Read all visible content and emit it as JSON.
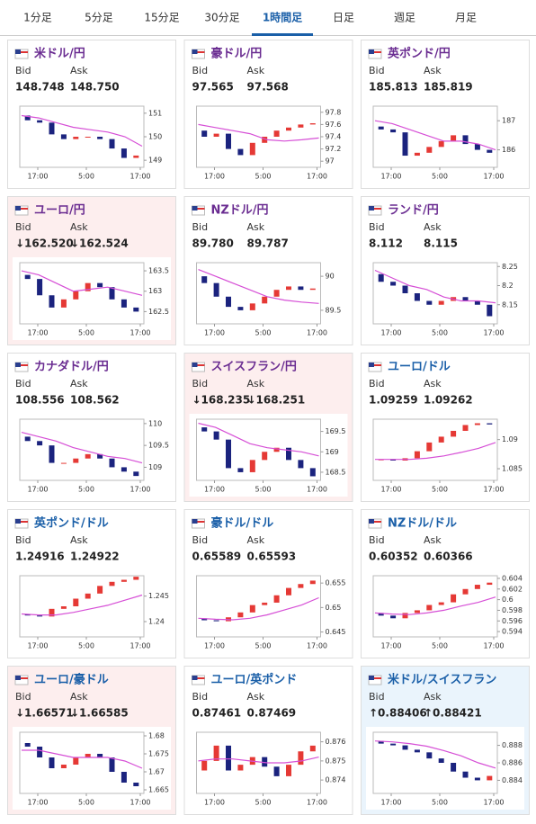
{
  "tabs": [
    "1分足",
    "5分足",
    "15分足",
    "30分足",
    "1時間足",
    "日足",
    "週足",
    "月足"
  ],
  "active_tab": 4,
  "labels": {
    "bid": "Bid",
    "ask": "Ask"
  },
  "time_labels": [
    "17:00",
    "5:00",
    "17:00"
  ],
  "cards": [
    {
      "name": "米ドル/円",
      "name_color": "#6a2c91",
      "bid": "148.748",
      "ask": "148.750",
      "ylim": [
        148.7,
        151.3
      ],
      "yticks": [
        149,
        150,
        151
      ],
      "open": [
        150.9,
        150.7,
        150.6,
        150.1,
        149.9,
        150.0,
        150.0,
        149.9,
        149.5,
        149.1
      ],
      "close": [
        150.7,
        150.6,
        150.1,
        149.9,
        150.0,
        150.0,
        149.9,
        149.5,
        149.1,
        149.2
      ],
      "ma": [
        150.9,
        150.8,
        150.6,
        150.4,
        150.3,
        150.2,
        150.0,
        149.6
      ]
    },
    {
      "name": "豪ドル/円",
      "name_color": "#6a2c91",
      "bid": "97.565",
      "ask": "97.568",
      "ylim": [
        96.9,
        97.9
      ],
      "yticks": [
        97,
        97.2,
        97.4,
        97.6,
        97.8
      ],
      "open": [
        97.5,
        97.4,
        97.45,
        97.2,
        97.1,
        97.3,
        97.4,
        97.5,
        97.55,
        97.6
      ],
      "close": [
        97.4,
        97.45,
        97.2,
        97.1,
        97.3,
        97.4,
        97.5,
        97.55,
        97.6,
        97.62
      ],
      "ma": [
        97.6,
        97.55,
        97.5,
        97.45,
        97.35,
        97.33,
        97.35,
        97.38
      ]
    },
    {
      "name": "英ポンド/円",
      "name_color": "#6a2c91",
      "bid": "185.813",
      "ask": "185.819",
      "ylim": [
        185.4,
        187.5
      ],
      "yticks": [
        186,
        187
      ],
      "open": [
        186.8,
        186.7,
        186.6,
        185.8,
        185.9,
        186.1,
        186.3,
        186.5,
        186.2,
        186.0
      ],
      "close": [
        186.7,
        186.6,
        185.8,
        185.9,
        186.1,
        186.3,
        186.5,
        186.2,
        186.0,
        185.9
      ],
      "ma": [
        187.0,
        186.9,
        186.7,
        186.5,
        186.3,
        186.3,
        186.2,
        186.0
      ]
    },
    {
      "name": "ユーロ/円",
      "name_color": "#6a2c91",
      "bg": "#fdeeee",
      "bid": "↓162.520",
      "ask": "↓162.524",
      "ylim": [
        162.2,
        163.7
      ],
      "yticks": [
        162.5,
        163,
        163.5
      ],
      "open": [
        163.4,
        163.3,
        162.9,
        162.6,
        162.8,
        163.0,
        163.2,
        163.1,
        162.8,
        162.6
      ],
      "close": [
        163.3,
        162.9,
        162.6,
        162.8,
        163.0,
        163.2,
        163.1,
        162.8,
        162.6,
        162.5
      ],
      "ma": [
        163.5,
        163.4,
        163.2,
        163.0,
        163.05,
        163.1,
        163.0,
        162.9
      ]
    },
    {
      "name": "NZドル/円",
      "name_color": "#6a2c91",
      "bid": "89.780",
      "ask": "89.787",
      "ylim": [
        89.3,
        90.2
      ],
      "yticks": [
        89.5,
        90
      ],
      "open": [
        90.0,
        89.9,
        89.7,
        89.55,
        89.5,
        89.6,
        89.7,
        89.8,
        89.85,
        89.8
      ],
      "close": [
        89.9,
        89.7,
        89.55,
        89.5,
        89.6,
        89.7,
        89.8,
        89.85,
        89.8,
        89.82
      ],
      "ma": [
        90.1,
        90.0,
        89.9,
        89.8,
        89.7,
        89.65,
        89.62,
        89.6
      ]
    },
    {
      "name": "ランド/円",
      "name_color": "#6a2c91",
      "bid": "8.112",
      "ask": "8.115",
      "ylim": [
        8.1,
        8.26
      ],
      "yticks": [
        8.15,
        8.2,
        8.25
      ],
      "open": [
        8.23,
        8.21,
        8.2,
        8.18,
        8.16,
        8.15,
        8.16,
        8.17,
        8.16,
        8.15
      ],
      "close": [
        8.21,
        8.2,
        8.18,
        8.16,
        8.15,
        8.16,
        8.17,
        8.16,
        8.15,
        8.12
      ],
      "ma": [
        8.24,
        8.22,
        8.2,
        8.19,
        8.17,
        8.16,
        8.16,
        8.155
      ]
    },
    {
      "name": "カナダドル/円",
      "name_color": "#6a2c91",
      "bid": "108.556",
      "ask": "108.562",
      "ylim": [
        108.7,
        110.1
      ],
      "yticks": [
        109,
        109.5,
        110
      ],
      "open": [
        109.7,
        109.6,
        109.5,
        109.1,
        109.1,
        109.2,
        109.3,
        109.2,
        109.0,
        108.9
      ],
      "close": [
        109.6,
        109.5,
        109.1,
        109.1,
        109.2,
        109.3,
        109.2,
        109.0,
        108.9,
        108.8
      ],
      "ma": [
        109.8,
        109.7,
        109.6,
        109.45,
        109.35,
        109.25,
        109.2,
        109.1
      ]
    },
    {
      "name": "スイスフラン/円",
      "name_color": "#6a2c91",
      "bg": "#fdeeee",
      "bid": "↓168.235",
      "ask": "↓168.251",
      "ylim": [
        168.3,
        169.8
      ],
      "yticks": [
        168.5,
        169,
        169.5
      ],
      "open": [
        169.6,
        169.5,
        169.3,
        168.6,
        168.5,
        168.8,
        169.0,
        169.1,
        168.8,
        168.6
      ],
      "close": [
        169.5,
        169.3,
        168.6,
        168.5,
        168.8,
        169.0,
        169.1,
        168.8,
        168.6,
        168.4
      ],
      "ma": [
        169.7,
        169.6,
        169.4,
        169.2,
        169.1,
        169.05,
        169.0,
        168.9
      ]
    },
    {
      "name": "ユーロ/ドル",
      "name_color": "#1a5fa8",
      "bid": "1.09259",
      "ask": "1.09262",
      "ylim": [
        1.083,
        1.0935
      ],
      "yticks": [
        1.085,
        1.09
      ],
      "open": [
        1.0865,
        1.0866,
        1.0864,
        1.0868,
        1.088,
        1.0895,
        1.0905,
        1.0915,
        1.0925,
        1.0928
      ],
      "close": [
        1.0866,
        1.0864,
        1.0868,
        1.088,
        1.0895,
        1.0905,
        1.0915,
        1.0925,
        1.0928,
        1.0926
      ],
      "ma": [
        1.0866,
        1.0866,
        1.0866,
        1.0868,
        1.0872,
        1.0878,
        1.0885,
        1.0895
      ]
    },
    {
      "name": "英ポンド/ドル",
      "name_color": "#1a5fa8",
      "bid": "1.24916",
      "ask": "1.24922",
      "ylim": [
        1.237,
        1.249
      ],
      "yticks": [
        1.24,
        1.245
      ],
      "open": [
        1.2415,
        1.2412,
        1.241,
        1.2425,
        1.243,
        1.2445,
        1.2455,
        1.247,
        1.2478,
        1.2482
      ],
      "close": [
        1.2412,
        1.241,
        1.2425,
        1.243,
        1.2445,
        1.2455,
        1.247,
        1.2478,
        1.2482,
        1.2488
      ],
      "ma": [
        1.2415,
        1.2413,
        1.2413,
        1.2418,
        1.2425,
        1.2432,
        1.2442,
        1.2452
      ]
    },
    {
      "name": "豪ドル/ドル",
      "name_color": "#1a5fa8",
      "bid": "0.65589",
      "ask": "0.65593",
      "ylim": [
        0.644,
        0.6565
      ],
      "yticks": [
        0.645,
        0.65,
        0.655
      ],
      "open": [
        0.6478,
        0.6474,
        0.6472,
        0.648,
        0.649,
        0.6505,
        0.651,
        0.6525,
        0.654,
        0.6548
      ],
      "close": [
        0.6474,
        0.6472,
        0.648,
        0.649,
        0.6505,
        0.651,
        0.6525,
        0.654,
        0.6548,
        0.6555
      ],
      "ma": [
        0.6478,
        0.6476,
        0.6475,
        0.6478,
        0.6485,
        0.6495,
        0.6505,
        0.652
      ]
    },
    {
      "name": "NZドル/ドル",
      "name_color": "#1a5fa8",
      "bid": "0.60352",
      "ask": "0.60366",
      "ylim": [
        0.593,
        0.6045
      ],
      "yticks": [
        0.594,
        0.596,
        0.598,
        0.6,
        0.602,
        0.604
      ],
      "open": [
        0.5975,
        0.597,
        0.5965,
        0.5975,
        0.598,
        0.599,
        0.5995,
        0.601,
        0.602,
        0.6028
      ],
      "close": [
        0.597,
        0.5965,
        0.5975,
        0.598,
        0.599,
        0.5995,
        0.601,
        0.602,
        0.6028,
        0.6032
      ],
      "ma": [
        0.5975,
        0.5973,
        0.5972,
        0.5975,
        0.598,
        0.5988,
        0.5995,
        0.6005
      ]
    },
    {
      "name": "ユーロ/豪ドル",
      "name_color": "#1a5fa8",
      "bg": "#fdeeee",
      "bid": "↓1.66571",
      "ask": "↓1.66585",
      "ylim": [
        1.664,
        1.681
      ],
      "yticks": [
        1.665,
        1.67,
        1.675,
        1.68
      ],
      "open": [
        1.678,
        1.677,
        1.674,
        1.671,
        1.672,
        1.674,
        1.675,
        1.674,
        1.67,
        1.667
      ],
      "close": [
        1.677,
        1.674,
        1.671,
        1.672,
        1.674,
        1.675,
        1.674,
        1.67,
        1.667,
        1.666
      ],
      "ma": [
        1.676,
        1.676,
        1.675,
        1.674,
        1.674,
        1.674,
        1.673,
        1.671
      ]
    },
    {
      "name": "ユーロ/英ポンド",
      "name_color": "#1a5fa8",
      "bid": "0.87461",
      "ask": "0.87469",
      "ylim": [
        0.8733,
        0.8765
      ],
      "yticks": [
        0.874,
        0.875,
        0.876
      ],
      "open": [
        0.8745,
        0.875,
        0.8758,
        0.8745,
        0.8748,
        0.8752,
        0.8747,
        0.8742,
        0.8748,
        0.8755
      ],
      "close": [
        0.875,
        0.8758,
        0.8745,
        0.8748,
        0.8752,
        0.8747,
        0.8742,
        0.8748,
        0.8755,
        0.8758
      ],
      "ma": [
        0.875,
        0.8751,
        0.8751,
        0.875,
        0.8749,
        0.8749,
        0.875,
        0.8752
      ]
    },
    {
      "name": "米ドル/スイスフラン",
      "name_color": "#1a5fa8",
      "bg": "#eaf4fc",
      "bid": "↑0.88406",
      "ask": "↑0.88421",
      "ylim": [
        0.8825,
        0.8895
      ],
      "yticks": [
        0.884,
        0.886,
        0.888
      ],
      "open": [
        0.8885,
        0.8882,
        0.888,
        0.8875,
        0.8872,
        0.8865,
        0.886,
        0.885,
        0.8843,
        0.884
      ],
      "close": [
        0.8882,
        0.888,
        0.8875,
        0.8872,
        0.8865,
        0.886,
        0.885,
        0.8843,
        0.884,
        0.8845
      ],
      "ma": [
        0.8885,
        0.8884,
        0.8882,
        0.8879,
        0.8874,
        0.8868,
        0.886,
        0.8854
      ]
    }
  ]
}
